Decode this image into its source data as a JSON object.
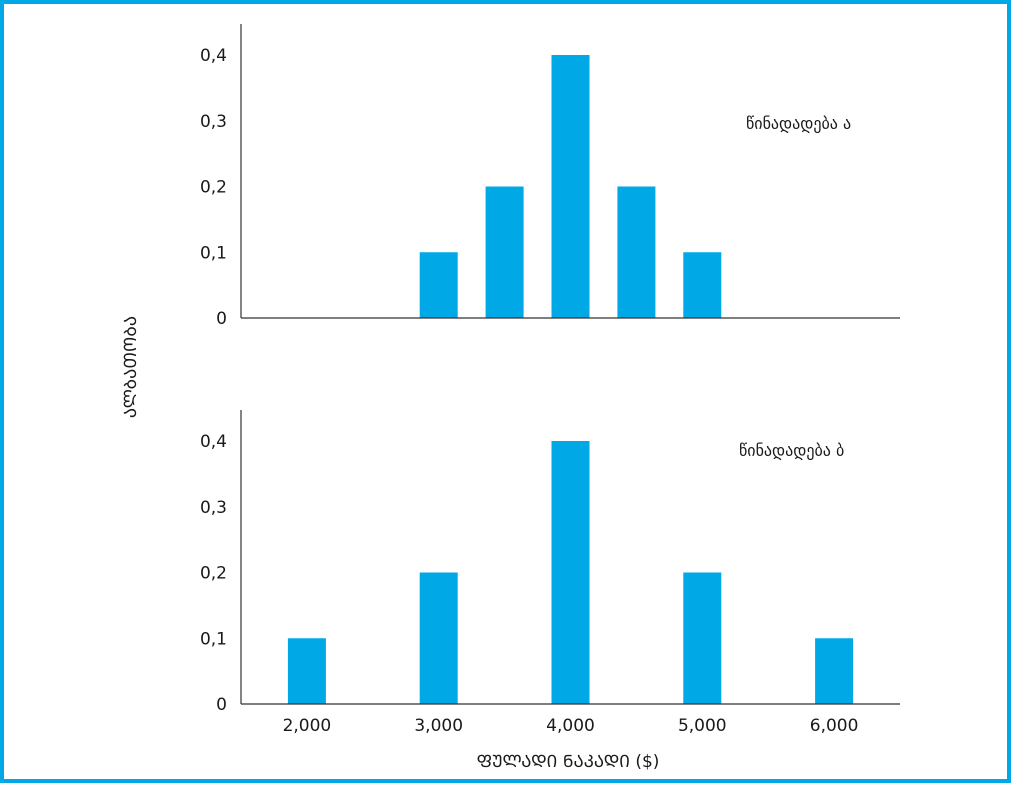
{
  "chart_data": {
    "type": "bar",
    "ylabel": "ᲐᲚᲑᲐᲗᲝᲑᲐ",
    "xlabel": "ᲤᲣᲚᲐᲓᲘ ᲜᲐᲙᲐᲓᲘ ($)",
    "x_ticks": [
      "2,000",
      "3,000",
      "4,000",
      "5,000",
      "6,000"
    ],
    "ylim": [
      0,
      0.4
    ],
    "xlim": [
      1500,
      6500
    ],
    "bar_color": "#00a9e6",
    "frame_color": "#00a9e6",
    "panels": [
      {
        "series_label": "წინადადება ა",
        "y_ticks": [
          "0",
          "0,1",
          "0,2",
          "0,3",
          "0,4"
        ],
        "x": [
          3000,
          3500,
          4000,
          4500,
          5000
        ],
        "values": [
          0.1,
          0.2,
          0.4,
          0.2,
          0.1
        ]
      },
      {
        "series_label": "წინადადება ბ",
        "y_ticks": [
          "0",
          "0,1",
          "0,2",
          "0,3",
          "0,4"
        ],
        "x": [
          2000,
          3000,
          4000,
          5000,
          6000
        ],
        "values": [
          0.1,
          0.2,
          0.4,
          0.2,
          0.1
        ]
      }
    ]
  }
}
